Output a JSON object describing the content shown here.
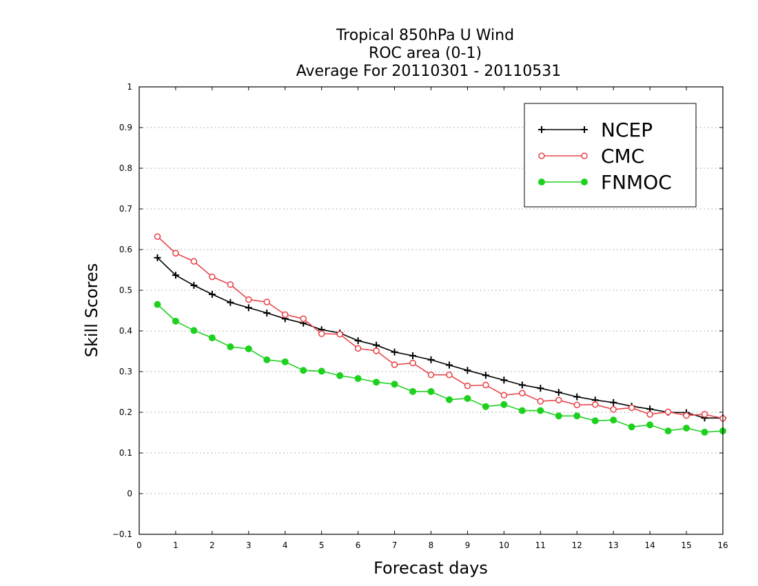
{
  "chart_data": {
    "type": "line",
    "title": [
      "Tropical 850hPa U Wind",
      "ROC area (0-1)",
      "Average For 20110301 - 20110531"
    ],
    "xlabel": "Forecast days",
    "ylabel": "Skill Scores",
    "xlim": [
      0,
      16
    ],
    "ylim": [
      -0.1,
      1
    ],
    "x_ticks": [
      0,
      1,
      2,
      3,
      4,
      5,
      6,
      7,
      8,
      9,
      10,
      11,
      12,
      13,
      14,
      15,
      16
    ],
    "x_tick_labels": [
      "0",
      "1",
      "2",
      "3",
      "4",
      "5",
      "6",
      "7",
      "8",
      "9",
      "10",
      "11",
      "12",
      "13",
      "14",
      "15",
      "16"
    ],
    "y_ticks": [
      -0.1,
      0,
      0.1,
      0.2,
      0.3,
      0.4,
      0.5,
      0.6,
      0.7,
      0.8,
      0.9,
      1
    ],
    "y_tick_labels": [
      "−0.1",
      "0",
      "0.1",
      "0.2",
      "0.3",
      "0.4",
      "0.5",
      "0.6",
      "0.7",
      "0.8",
      "0.9",
      "1"
    ],
    "grid": "horizontal dotted",
    "legend_position": "top-right",
    "x": [
      0.5,
      1,
      1.5,
      2,
      2.5,
      3,
      3.5,
      4,
      4.5,
      5,
      5.5,
      6,
      6.5,
      7,
      7.5,
      8,
      8.5,
      9,
      9.5,
      10,
      10.5,
      11,
      11.5,
      12,
      12.5,
      13,
      13.5,
      14,
      14.5,
      15,
      15.5,
      16
    ],
    "series": [
      {
        "name": "NCEP",
        "color": "#000000",
        "marker": "plus",
        "values": [
          0.58,
          0.537,
          0.512,
          0.49,
          0.47,
          0.457,
          0.444,
          0.43,
          0.419,
          0.403,
          0.395,
          0.376,
          0.365,
          0.348,
          0.339,
          0.329,
          0.316,
          0.303,
          0.291,
          0.279,
          0.267,
          0.259,
          0.249,
          0.238,
          0.23,
          0.224,
          0.215,
          0.208,
          0.2,
          0.199,
          0.186,
          0.186
        ]
      },
      {
        "name": "CMC",
        "color": "#e8474c",
        "marker": "open-circle",
        "values": [
          0.632,
          0.591,
          0.571,
          0.533,
          0.514,
          0.477,
          0.471,
          0.44,
          0.43,
          0.393,
          0.392,
          0.357,
          0.351,
          0.317,
          0.321,
          0.292,
          0.292,
          0.265,
          0.267,
          0.242,
          0.247,
          0.227,
          0.23,
          0.218,
          0.219,
          0.207,
          0.211,
          0.195,
          0.201,
          0.192,
          0.195,
          0.185
        ]
      },
      {
        "name": "FNMOC",
        "color": "#1fd11f",
        "marker": "filled-circle",
        "values": [
          0.465,
          0.424,
          0.401,
          0.383,
          0.361,
          0.356,
          0.329,
          0.324,
          0.303,
          0.301,
          0.29,
          0.283,
          0.274,
          0.269,
          0.251,
          0.251,
          0.231,
          0.234,
          0.214,
          0.219,
          0.204,
          0.204,
          0.191,
          0.191,
          0.179,
          0.181,
          0.164,
          0.169,
          0.154,
          0.161,
          0.151,
          0.154
        ]
      }
    ]
  }
}
